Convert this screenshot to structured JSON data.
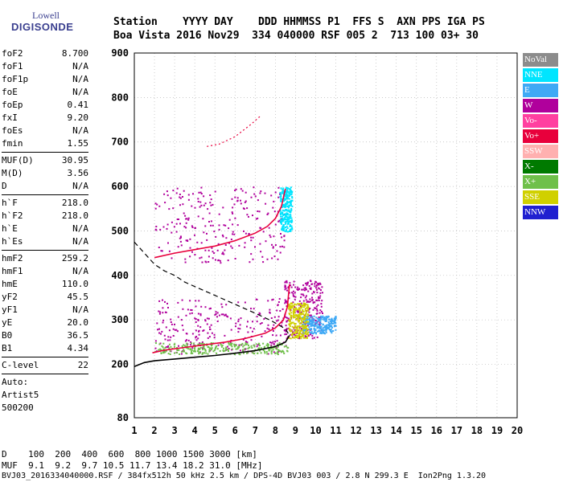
{
  "logo": {
    "line1": "Lowell",
    "line2": "DIGISONDE"
  },
  "header": {
    "line1": "Station    YYYY DAY    DDD HHMMSS P1  FFS S  AXN PPS IGA PS",
    "line2": "Boa Vista 2016 Nov29  334 040000 RSF 005 2  713 100 03+ 30"
  },
  "params": {
    "group1": [
      {
        "key": "foF2",
        "value": "8.700"
      },
      {
        "key": "foF1",
        "value": "N/A"
      },
      {
        "key": "foF1p",
        "value": "N/A"
      },
      {
        "key": "foE",
        "value": "N/A"
      },
      {
        "key": "foEp",
        "value": "0.41"
      },
      {
        "key": "fxI",
        "value": "9.20"
      },
      {
        "key": "foEs",
        "value": "N/A"
      },
      {
        "key": "fmin",
        "value": "1.55"
      }
    ],
    "group2": [
      {
        "key": "MUF(D)",
        "value": "30.95"
      },
      {
        "key": "M(D)",
        "value": "3.56"
      },
      {
        "key": "D",
        "value": "N/A"
      }
    ],
    "group3": [
      {
        "key": "h`F",
        "value": "218.0"
      },
      {
        "key": "h`F2",
        "value": "218.0"
      },
      {
        "key": "h`E",
        "value": "N/A"
      },
      {
        "key": "h`Es",
        "value": "N/A"
      }
    ],
    "group4": [
      {
        "key": "hmF2",
        "value": "259.2"
      },
      {
        "key": "hmF1",
        "value": "N/A"
      },
      {
        "key": "hmE",
        "value": "110.0"
      },
      {
        "key": "yF2",
        "value": "45.5"
      },
      {
        "key": "yF1",
        "value": "N/A"
      },
      {
        "key": "yE",
        "value": "20.0"
      },
      {
        "key": "B0",
        "value": "36.5"
      },
      {
        "key": "B1",
        "value": "4.34"
      }
    ],
    "clevel": {
      "key": "C-level",
      "value": "22"
    },
    "auto": [
      "Auto:",
      "Artist5",
      "500200"
    ]
  },
  "legend": [
    {
      "label": "NoVal",
      "color": "#8c8c8c"
    },
    {
      "label": "NNE",
      "color": "#00e5ff"
    },
    {
      "label": "E",
      "color": "#3fa9f5"
    },
    {
      "label": "W",
      "color": "#b0009c"
    },
    {
      "label": "Vo-",
      "color": "#ff40a0"
    },
    {
      "label": "Vo+",
      "color": "#e8003c"
    },
    {
      "label": "SSW",
      "color": "#ffb0b0"
    },
    {
      "label": "X-",
      "color": "#007a00"
    },
    {
      "label": "X+",
      "color": "#6fc04a"
    },
    {
      "label": "SSE",
      "color": "#d0d000"
    },
    {
      "label": "NNW",
      "color": "#2020d0"
    }
  ],
  "footer": {
    "line1": "D    100  200  400  600  800 1000 1500 3000 [km]",
    "line2": "MUF  9.1  9.2  9.7 10.5 11.7 13.4 18.2 31.0 [MHz]",
    "line3": "BVJ03_2016334040000.RSF / 384fx512h 50 kHz 2.5 km / DPS-4D BVJ03 003 / 2.8 N 299.3 E  Ion2Png 1.3.20"
  },
  "chart_data": {
    "type": "scatter",
    "xlim": [
      1,
      20
    ],
    "ylim": [
      80,
      900
    ],
    "xticks": [
      1,
      2,
      3,
      4,
      5,
      6,
      7,
      8,
      9,
      10,
      11,
      12,
      13,
      14,
      15,
      16,
      17,
      18,
      19,
      20
    ],
    "yticks": [
      80,
      200,
      300,
      400,
      500,
      600,
      700,
      800,
      900
    ],
    "grid": "dotted",
    "legend_position": "right",
    "traces": [
      {
        "name": "Vo+",
        "color": "#e8003c",
        "style": "solid",
        "points": [
          [
            1.9,
            226
          ],
          [
            2.5,
            232
          ],
          [
            3.5,
            238
          ],
          [
            4.5,
            244
          ],
          [
            5.5,
            250
          ],
          [
            6.5,
            258
          ],
          [
            7.5,
            270
          ],
          [
            8.0,
            282
          ],
          [
            8.4,
            300
          ],
          [
            8.6,
            330
          ],
          [
            8.7,
            380
          ]
        ]
      },
      {
        "name": "Vo+",
        "color": "#e8003c",
        "style": "solid",
        "points": [
          [
            2.0,
            440
          ],
          [
            3.0,
            450
          ],
          [
            4.0,
            458
          ],
          [
            5.0,
            466
          ],
          [
            6.0,
            478
          ],
          [
            7.0,
            495
          ],
          [
            7.6,
            510
          ],
          [
            8.0,
            528
          ],
          [
            8.3,
            555
          ],
          [
            8.5,
            595
          ]
        ]
      },
      {
        "name": "",
        "color": "#000000",
        "style": "solid",
        "points": [
          [
            1.0,
            195
          ],
          [
            1.5,
            204
          ],
          [
            2.0,
            208
          ],
          [
            3.0,
            212
          ],
          [
            4.0,
            216
          ],
          [
            5.0,
            220
          ],
          [
            6.0,
            225
          ],
          [
            7.0,
            231
          ],
          [
            8.0,
            240
          ],
          [
            8.5,
            250
          ],
          [
            8.7,
            265
          ]
        ]
      },
      {
        "name": "",
        "color": "#000000",
        "style": "dashed",
        "points": [
          [
            1.0,
            475
          ],
          [
            1.5,
            450
          ],
          [
            2.0,
            425
          ],
          [
            2.5,
            410
          ],
          [
            3.0,
            400
          ],
          [
            3.5,
            385
          ],
          [
            4.0,
            375
          ],
          [
            5.0,
            355
          ],
          [
            6.0,
            335
          ],
          [
            7.0,
            315
          ],
          [
            7.8,
            298
          ],
          [
            8.5,
            280
          ],
          [
            8.7,
            265
          ]
        ]
      },
      {
        "name": "Vo+",
        "color": "#e8003c",
        "style": "dotted",
        "points": [
          [
            4.6,
            690
          ],
          [
            5.2,
            695
          ],
          [
            6.0,
            712
          ],
          [
            6.8,
            740
          ],
          [
            7.3,
            760
          ]
        ]
      }
    ],
    "clusters": [
      {
        "name": "W",
        "color": "#b0009c",
        "x": [
          2.0,
          8.6
        ],
        "y": [
          225,
          350
        ]
      },
      {
        "name": "W",
        "color": "#b0009c",
        "x": [
          2.0,
          8.5
        ],
        "y": [
          430,
          600
        ]
      },
      {
        "name": "W",
        "color": "#b0009c",
        "x": [
          8.4,
          10.3
        ],
        "y": [
          260,
          390
        ]
      },
      {
        "name": "E",
        "color": "#3fa9f5",
        "x": [
          9.3,
          11.0
        ],
        "y": [
          270,
          310
        ]
      },
      {
        "name": "X+",
        "color": "#6fc04a",
        "x": [
          2.0,
          8.6
        ],
        "y": [
          224,
          250
        ]
      },
      {
        "name": "SSE",
        "color": "#d0d000",
        "x": [
          8.6,
          9.6
        ],
        "y": [
          260,
          340
        ]
      },
      {
        "name": "NNE",
        "color": "#00e5ff",
        "x": [
          8.2,
          8.8
        ],
        "y": [
          500,
          600
        ]
      }
    ]
  }
}
